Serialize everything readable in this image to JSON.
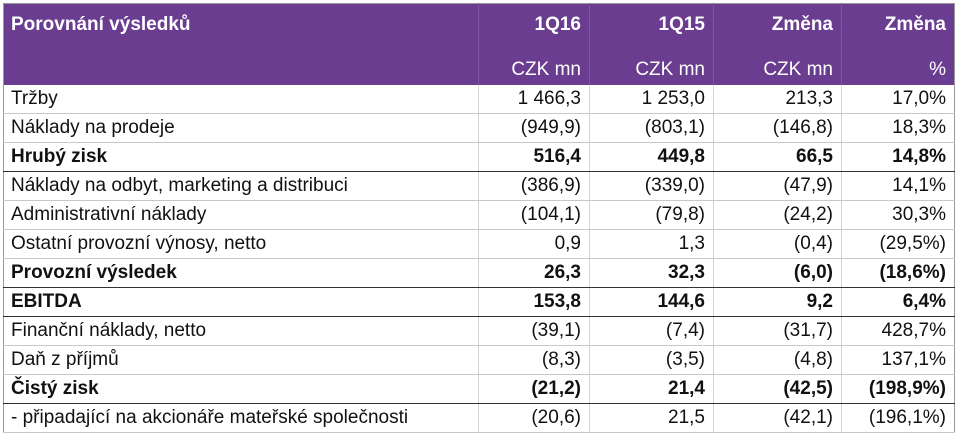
{
  "header": {
    "columns": [
      "Porovnání výsledků",
      "1Q16",
      "1Q15",
      "Změna",
      "Změna"
    ],
    "units": [
      "",
      "CZK mn",
      "CZK mn",
      "CZK mn",
      "%"
    ]
  },
  "rows": [
    {
      "label": "Tržby",
      "v": [
        "1 466,3",
        "1 253,0",
        "213,3",
        "17,0%"
      ],
      "bold": false
    },
    {
      "label": "Náklady na prodeje",
      "v": [
        "(949,9)",
        "(803,1)",
        "(146,8)",
        "18,3%"
      ],
      "bold": false
    },
    {
      "label": "Hrubý zisk",
      "v": [
        "516,4",
        "449,8",
        "66,5",
        "14,8%"
      ],
      "bold": true
    },
    {
      "label": "Náklady na odbyt, marketing a distribuci",
      "v": [
        "(386,9)",
        "(339,0)",
        "(47,9)",
        "14,1%"
      ],
      "bold": false
    },
    {
      "label": "Administrativní náklady",
      "v": [
        "(104,1)",
        "(79,8)",
        "(24,2)",
        "30,3%"
      ],
      "bold": false
    },
    {
      "label": "Ostatní provozní výnosy, netto",
      "v": [
        "0,9",
        "1,3",
        "(0,4)",
        "(29,5%)"
      ],
      "bold": false
    },
    {
      "label": "Provozní výsledek",
      "v": [
        "26,3",
        "32,3",
        "(6,0)",
        "(18,6%)"
      ],
      "bold": true
    },
    {
      "label": "EBITDA",
      "v": [
        "153,8",
        "144,6",
        "9,2",
        "6,4%"
      ],
      "bold": true
    },
    {
      "label": "Finanční náklady, netto",
      "v": [
        "(39,1)",
        "(7,4)",
        "(31,7)",
        "428,7%"
      ],
      "bold": false
    },
    {
      "label": "Daň z příjmů",
      "v": [
        "(8,3)",
        "(3,5)",
        "(4,8)",
        "137,1%"
      ],
      "bold": false
    },
    {
      "label": "Čistý zisk",
      "v": [
        "(21,2)",
        "21,4",
        "(42,5)",
        "(198,9%)"
      ],
      "bold": true
    },
    {
      "label": " - připadající na akcionáře mateřské společnosti",
      "v": [
        "(20,6)",
        "21,5",
        "(42,1)",
        "(196,1%)"
      ],
      "bold": false
    }
  ],
  "colors": {
    "header_bg": "#6a3d91",
    "header_text": "#ffffff"
  }
}
